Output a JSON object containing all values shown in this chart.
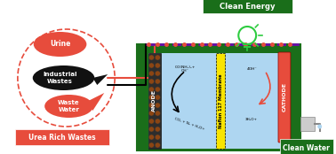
{
  "bg_color": "#ffffff",
  "green_dark": "#1a6e1a",
  "green_light": "#2ecc40",
  "blue_fill": "#aed6f1",
  "red_color": "#e74c3c",
  "black_color": "#111111",
  "yellow_color": "#f9e400",
  "purple_color": "#6a0dad",
  "orange_color": "#e67e22",
  "dark_red": "#8b0000",
  "labels": {
    "clean_energy": "Clean Energy",
    "clean_water": "Clean Water",
    "urea_rich": "Urea Rich Wastes",
    "urine": "Urine",
    "industrial": "Industrial\nWastes",
    "waste_water": "Waste\nWater",
    "anode": "ANODE",
    "cathode": "CATHODE",
    "nafion": "Nafion 117 Membrane",
    "co2": "CO₂ + N₂ + H₂O+",
    "con": "CO(NH₂)₂+\nOH⁻",
    "4oh": "4OH⁻",
    "h2o": "3H₂O+"
  }
}
